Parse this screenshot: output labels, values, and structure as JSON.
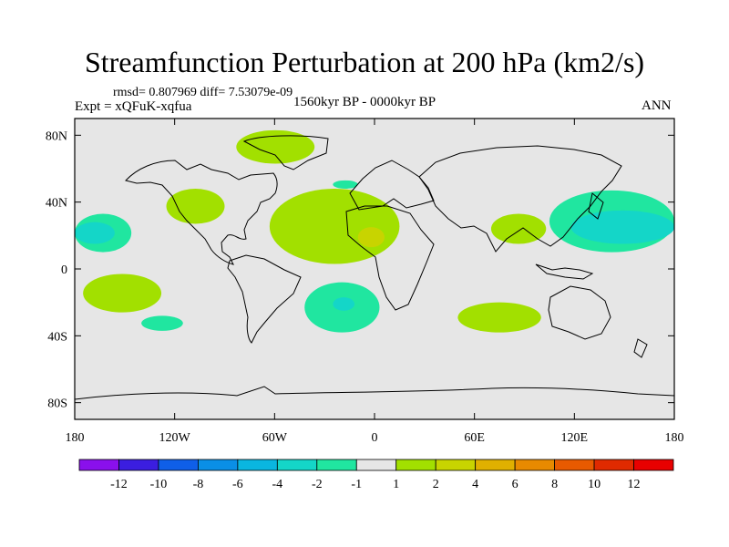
{
  "header": {
    "title": "Streamfunction Perturbation at 200 hPa (km2/s)",
    "stats": "rmsd= 0.807969  diff= 7.53079e-09",
    "experiment": "Expt = xQFuK-xqfua",
    "period": "1560kyr BP - 0000kyr BP",
    "season": "ANN"
  },
  "chart_data": {
    "type": "heatmap",
    "title": "Streamfunction Perturbation at 200 hPa (km2/s)",
    "projection": "cylindrical-equidistant",
    "xlim": [
      -180,
      180
    ],
    "ylim": [
      -90,
      90
    ],
    "x_ticks": [
      {
        "value": -180,
        "label": "180"
      },
      {
        "value": -120,
        "label": "120W"
      },
      {
        "value": -60,
        "label": "60W"
      },
      {
        "value": 0,
        "label": "0"
      },
      {
        "value": 60,
        "label": "60E"
      },
      {
        "value": 120,
        "label": "120E"
      },
      {
        "value": 180,
        "label": "180"
      }
    ],
    "y_ticks": [
      {
        "value": 80,
        "label": "80N"
      },
      {
        "value": 40,
        "label": "40N"
      },
      {
        "value": 0,
        "label": "0"
      },
      {
        "value": -40,
        "label": "40S"
      },
      {
        "value": -80,
        "label": "80S"
      }
    ],
    "background_level": "-1 to 1",
    "colorbar": {
      "levels": [
        "-12",
        "-10",
        "-8",
        "-6",
        "-4",
        "-2",
        "-1",
        "1",
        "2",
        "4",
        "6",
        "8",
        "10",
        "12"
      ],
      "colors": [
        "#8a10ec",
        "#3b1ee0",
        "#0f5fe8",
        "#0a8fe6",
        "#0ab6e0",
        "#14d6c8",
        "#20e6a0",
        "#e6e6e6",
        "#a2e000",
        "#c8d400",
        "#e0b000",
        "#e88a00",
        "#e85a00",
        "#e02a00",
        "#e80000"
      ]
    },
    "anomalies": [
      {
        "lon_min": -180,
        "lon_max": -146,
        "lat_min": 10,
        "lat_max": 33,
        "level": "-2 to -1"
      },
      {
        "lon_min": -180,
        "lon_max": -156,
        "lat_min": 15,
        "lat_max": 28,
        "level": "-4 to -2"
      },
      {
        "lon_min": -125,
        "lon_max": -90,
        "lat_min": 27,
        "lat_max": 48,
        "level": "1 to 2"
      },
      {
        "lon_min": -83,
        "lon_max": -36,
        "lat_min": 63,
        "lat_max": 83,
        "level": "1 to 2"
      },
      {
        "lon_min": -25,
        "lon_max": -10,
        "lat_min": 48,
        "lat_max": 53,
        "level": "-2 to -1"
      },
      {
        "lon_min": -63,
        "lon_max": 15,
        "lat_min": 3,
        "lat_max": 48,
        "level": "1 to 2"
      },
      {
        "lon_min": -10,
        "lon_max": 6,
        "lat_min": 13,
        "lat_max": 25,
        "level": "2 to 4"
      },
      {
        "lon_min": 70,
        "lon_max": 103,
        "lat_min": 15,
        "lat_max": 33,
        "level": "1 to 2"
      },
      {
        "lon_min": 105,
        "lon_max": 180,
        "lat_min": 10,
        "lat_max": 47,
        "level": "-2 to -1"
      },
      {
        "lon_min": 118,
        "lon_max": 180,
        "lat_min": 15,
        "lat_max": 35,
        "level": "-4 to -2"
      },
      {
        "lon_min": -175,
        "lon_max": -128,
        "lat_min": -26,
        "lat_max": -3,
        "level": "1 to 2"
      },
      {
        "lon_min": -140,
        "lon_max": -115,
        "lat_min": -37,
        "lat_max": -28,
        "level": "-2 to -1"
      },
      {
        "lon_min": -42,
        "lon_max": 3,
        "lat_min": -38,
        "lat_max": -8,
        "level": "-2 to -1"
      },
      {
        "lon_min": -25,
        "lon_max": -12,
        "lat_min": -25,
        "lat_max": -17,
        "level": "-4 to -2"
      },
      {
        "lon_min": 50,
        "lon_max": 100,
        "lat_min": -38,
        "lat_max": -20,
        "level": "1 to 2"
      }
    ]
  }
}
